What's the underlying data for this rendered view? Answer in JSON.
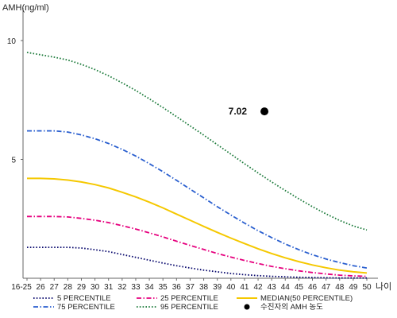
{
  "chart_data": {
    "type": "line",
    "title": "",
    "ylabel": "AMH(ng/ml)",
    "xlabel": "나이",
    "ylim": [
      0,
      11
    ],
    "yticks": [
      5,
      10
    ],
    "grid": false,
    "legend_position": "bottom",
    "categories": [
      "16-25",
      "26",
      "27",
      "28",
      "29",
      "30",
      "31",
      "32",
      "33",
      "34",
      "35",
      "36",
      "37",
      "38",
      "39",
      "40",
      "41",
      "42",
      "43",
      "44",
      "45",
      "46",
      "47",
      "48",
      "49",
      "50"
    ],
    "series": [
      {
        "name": "5 PERCENTILE",
        "color": "#0a0a6e",
        "style": "dotted",
        "values": [
          1.3,
          1.3,
          1.3,
          1.3,
          1.27,
          1.2,
          1.12,
          1.0,
          0.88,
          0.76,
          0.64,
          0.53,
          0.43,
          0.34,
          0.27,
          0.2,
          0.15,
          0.11,
          0.08,
          0.06,
          0.04,
          0.03,
          0.02,
          0.01,
          0.01,
          0.01
        ]
      },
      {
        "name": "25 PERCENTILE",
        "color": "#e6007e",
        "style": "dashdot",
        "values": [
          2.6,
          2.6,
          2.6,
          2.58,
          2.52,
          2.44,
          2.34,
          2.21,
          2.07,
          1.91,
          1.74,
          1.56,
          1.38,
          1.21,
          1.04,
          0.89,
          0.75,
          0.62,
          0.5,
          0.4,
          0.31,
          0.24,
          0.18,
          0.13,
          0.1,
          0.08
        ]
      },
      {
        "name": "MEDIAN(50 PERCENTILE)",
        "color": "#f5c800",
        "style": "solid",
        "values": [
          4.2,
          4.2,
          4.18,
          4.13,
          4.05,
          3.94,
          3.8,
          3.62,
          3.42,
          3.2,
          2.96,
          2.7,
          2.44,
          2.18,
          1.93,
          1.69,
          1.46,
          1.24,
          1.04,
          0.86,
          0.7,
          0.56,
          0.44,
          0.34,
          0.27,
          0.22
        ]
      },
      {
        "name": "75 PERCENTILE",
        "color": "#2a5fcf",
        "style": "dashdot",
        "values": [
          6.2,
          6.2,
          6.2,
          6.15,
          6.03,
          5.87,
          5.67,
          5.42,
          5.14,
          4.82,
          4.48,
          4.12,
          3.75,
          3.38,
          3.01,
          2.66,
          2.32,
          2.0,
          1.71,
          1.44,
          1.2,
          0.99,
          0.81,
          0.66,
          0.53,
          0.43
        ]
      },
      {
        "name": "95 PERCENTILE",
        "color": "#1b7a3a",
        "style": "dotted",
        "values": [
          9.5,
          9.4,
          9.3,
          9.18,
          9.0,
          8.78,
          8.52,
          8.22,
          7.9,
          7.55,
          7.18,
          6.8,
          6.41,
          6.02,
          5.62,
          5.22,
          4.82,
          4.43,
          4.05,
          3.69,
          3.34,
          3.01,
          2.71,
          2.43,
          2.2,
          2.03
        ]
      }
    ],
    "patient": {
      "label": "수진자의 AMH 농도",
      "x": "42",
      "value": 7.02,
      "value_text": "7.02",
      "color": "#000000"
    }
  }
}
